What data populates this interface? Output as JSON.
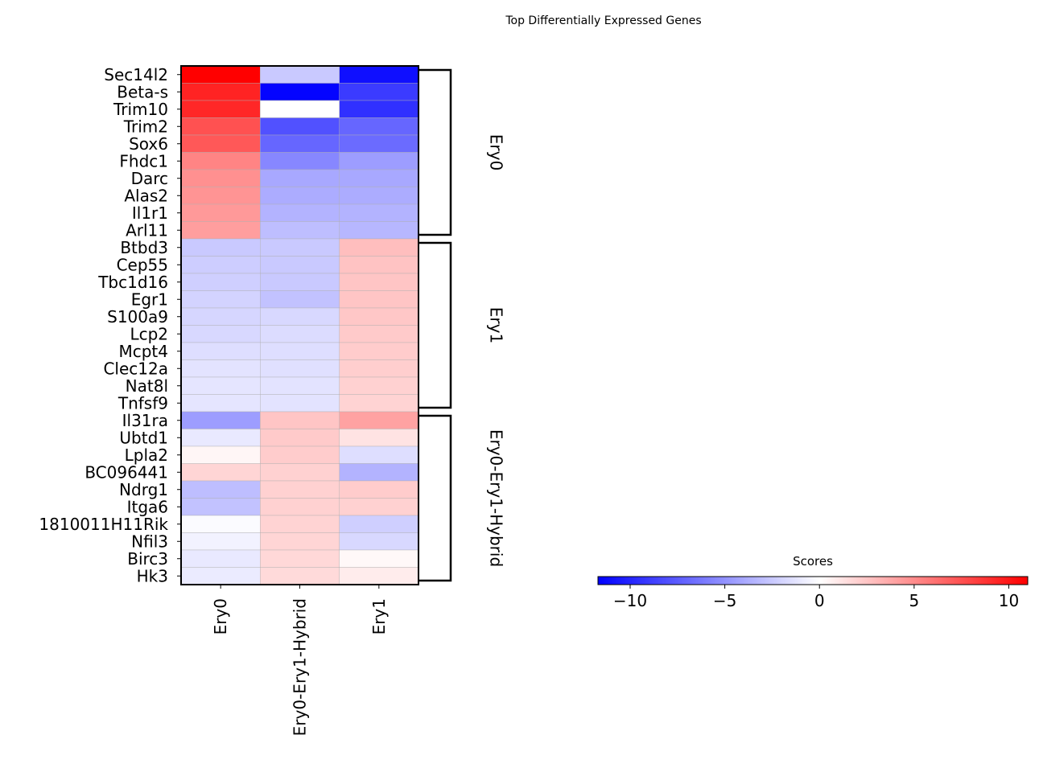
{
  "chart_data": {
    "type": "heatmap",
    "title": "Top Differentially Expressed Genes",
    "columns": [
      "Ery0",
      "Ery0-Ery1-Hybrid",
      "Ery1"
    ],
    "rows": [
      "Sec14l2",
      "Beta-s",
      "Trim10",
      "Trim2",
      "Sox6",
      "Fhdc1",
      "Darc",
      "Alas2",
      "Il1r1",
      "Arl11",
      "Btbd3",
      "Cep55",
      "Tbc1d16",
      "Egr1",
      "S100a9",
      "Lcp2",
      "Mcpt4",
      "Clec12a",
      "Nat8l",
      "Tnfsf9",
      "Il31ra",
      "Ubtd1",
      "Lpla2",
      "BC096441",
      "Ndrg1",
      "Itga6",
      "1810011H11Rik",
      "Nfil3",
      "Birc3",
      "Hk3"
    ],
    "values": [
      [
        11.0,
        -2.5,
        -11.0
      ],
      [
        9.5,
        -11.5,
        -9.0
      ],
      [
        9.3,
        0.0,
        -9.5
      ],
      [
        7.5,
        -8.0,
        -7.0
      ],
      [
        7.2,
        -7.0,
        -6.8
      ],
      [
        5.3,
        -5.5,
        -4.5
      ],
      [
        4.8,
        -4.0,
        -4.0
      ],
      [
        4.6,
        -3.8,
        -3.8
      ],
      [
        4.4,
        -3.5,
        -3.5
      ],
      [
        4.2,
        -3.0,
        -3.3
      ],
      [
        -2.5,
        -2.5,
        2.8
      ],
      [
        -2.3,
        -2.5,
        2.6
      ],
      [
        -2.2,
        -2.5,
        2.5
      ],
      [
        -2.0,
        -2.8,
        2.5
      ],
      [
        -1.9,
        -1.8,
        2.4
      ],
      [
        -1.8,
        -1.6,
        2.3
      ],
      [
        -1.5,
        -1.5,
        2.2
      ],
      [
        -1.3,
        -1.4,
        2.1
      ],
      [
        -1.2,
        -1.3,
        2.0
      ],
      [
        -1.2,
        -1.3,
        1.9
      ],
      [
        -4.5,
        2.5,
        4.0
      ],
      [
        -1.0,
        2.3,
        1.2
      ],
      [
        0.4,
        2.2,
        -1.5
      ],
      [
        1.8,
        2.0,
        -3.5
      ],
      [
        -3.0,
        2.0,
        2.2
      ],
      [
        -2.8,
        2.0,
        2.0
      ],
      [
        -0.2,
        1.9,
        -2.2
      ],
      [
        -0.6,
        1.8,
        -1.8
      ],
      [
        -1.0,
        1.7,
        0.3
      ],
      [
        -0.9,
        1.6,
        0.8
      ]
    ],
    "groups": [
      {
        "label": "Ery0",
        "start": 0,
        "end": 9
      },
      {
        "label": "Ery1",
        "start": 10,
        "end": 19
      },
      {
        "label": "Ery0-Ery1-Hybrid",
        "start": 20,
        "end": 29
      }
    ],
    "colorbar": {
      "label": "Scores",
      "colormap": "bwr",
      "vmin": -11.7,
      "vmax": 11.0,
      "ticks": [
        -10,
        -5,
        0,
        5,
        10
      ],
      "tick_labels": [
        "−10",
        "−5",
        "0",
        "5",
        "10"
      ],
      "colors": {
        "low": "#0000ff",
        "mid": "#ffffff",
        "high": "#ff0000"
      }
    }
  }
}
